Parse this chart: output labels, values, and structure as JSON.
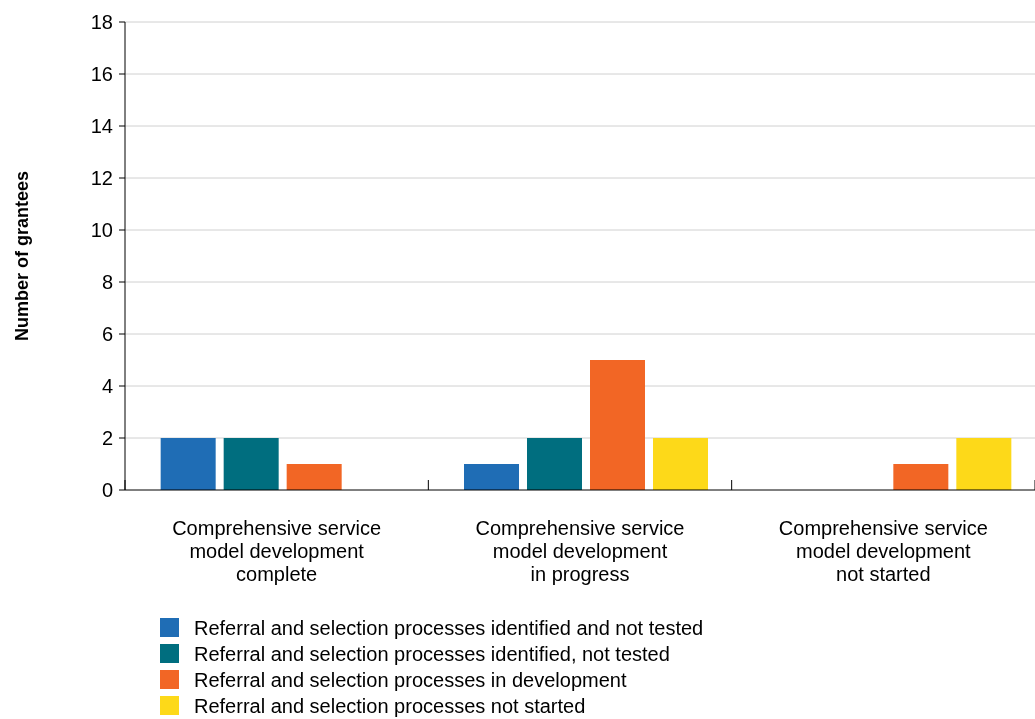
{
  "chart_data": {
    "type": "bar",
    "ylabel": "Number of grantees",
    "categories": [
      "Comprehensive service\nmodel development\ncomplete",
      "Comprehensive service\nmodel development\nin progress",
      "Comprehensive service\nmodel development\nnot started"
    ],
    "series": [
      {
        "name": "Referral and selection processes identified and not tested",
        "color": "#1f6db5",
        "values": [
          2,
          1,
          0
        ]
      },
      {
        "name": "Referral and selection processes identified, not tested",
        "color": "#006e7f",
        "values": [
          2,
          2,
          0
        ]
      },
      {
        "name": "Referral and selection processes in development",
        "color": "#f26625",
        "values": [
          1,
          5,
          1
        ]
      },
      {
        "name": "Referral and selection processes not started",
        "color": "#fdd919",
        "values": [
          0,
          2,
          2
        ]
      }
    ],
    "ylim": [
      0,
      18
    ],
    "yticks": [
      0,
      2,
      4,
      6,
      8,
      10,
      12,
      14,
      16,
      18
    ],
    "grid": "y",
    "legend": "bottom"
  }
}
